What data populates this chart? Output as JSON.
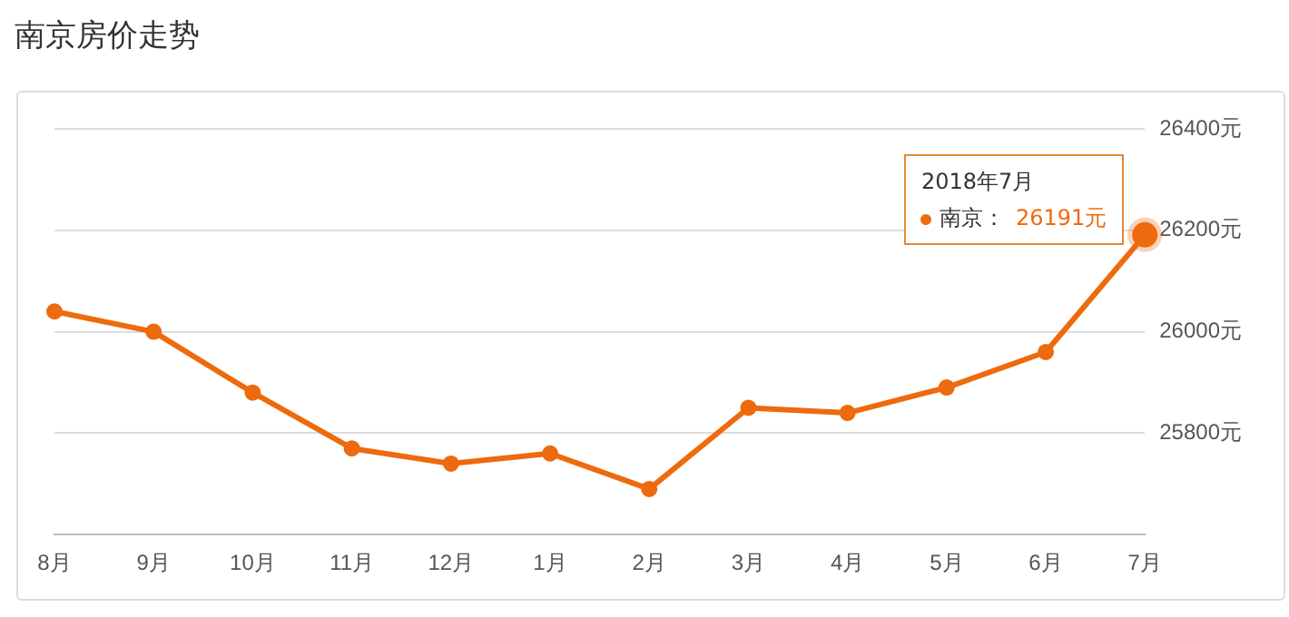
{
  "chart_data": {
    "type": "line",
    "title": "南京房价走势",
    "categories": [
      "8月",
      "9月",
      "10月",
      "11月",
      "12月",
      "1月",
      "2月",
      "3月",
      "4月",
      "5月",
      "6月",
      "7月"
    ],
    "series": [
      {
        "name": "南京：",
        "color": "#ee6a0e",
        "values": [
          26040,
          26000,
          25880,
          25770,
          25740,
          25760,
          25690,
          25850,
          25840,
          25890,
          25960,
          26191
        ],
        "value_labels": [
          null,
          null,
          null,
          null,
          null,
          null,
          null,
          null,
          null,
          null,
          null,
          "26191元"
        ]
      }
    ],
    "ylim": [
      25600,
      26400
    ],
    "yticks": [
      {
        "value": 25800,
        "label": "25800元"
      },
      {
        "value": 26000,
        "label": "26000元"
      },
      {
        "value": 26200,
        "label": "26200元"
      },
      {
        "value": 26400,
        "label": "26400元"
      }
    ],
    "grid": "y",
    "legend": "right",
    "marker": "circle",
    "line_style": "solid",
    "annotations": [
      "2018年7月"
    ]
  }
}
